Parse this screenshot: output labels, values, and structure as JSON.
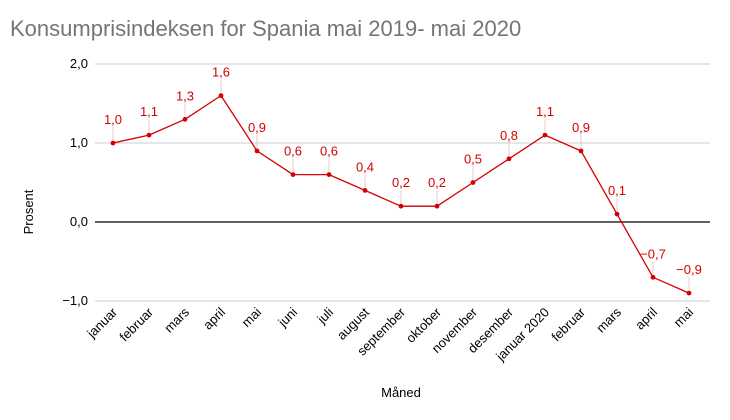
{
  "chart_data": {
    "type": "line",
    "title": "Konsumprisindeksen for Spania mai 2019- mai 2020",
    "xlabel": "Måned",
    "ylabel": "Prosent",
    "ylim": [
      -1.0,
      2.0
    ],
    "yticks": [
      -1.0,
      0.0,
      1.0,
      2.0
    ],
    "ytick_labels": [
      "−1,0",
      "0,0",
      "1,0",
      "2,0"
    ],
    "grid": true,
    "legend": "none",
    "categories": [
      "januar",
      "februar",
      "mars",
      "april",
      "mai",
      "juni",
      "juli",
      "august",
      "september",
      "oktober",
      "november",
      "desember",
      "januar 2020",
      "februar",
      "mars",
      "april",
      "mai"
    ],
    "series": [
      {
        "values": [
          1.0,
          1.1,
          1.3,
          1.6,
          0.9,
          0.6,
          0.6,
          0.4,
          0.2,
          0.2,
          0.5,
          0.8,
          1.1,
          0.9,
          0.1,
          -0.7,
          -0.9
        ],
        "data_labels": [
          "1,0",
          "1,1",
          "1,3",
          "1,6",
          "0,9",
          "0,6",
          "0,6",
          "0,4",
          "0,2",
          "0,2",
          "0,5",
          "0,8",
          "1,1",
          "0,9",
          "0,1",
          "−0,7",
          "−0,9"
        ],
        "color": "#d50000"
      }
    ]
  }
}
